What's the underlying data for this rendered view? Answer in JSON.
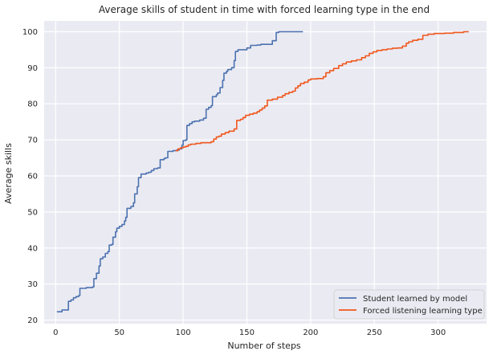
{
  "chart_data": {
    "type": "line",
    "title": "Average skills of student in time with forced learning type in the end",
    "xlabel": "Number of steps",
    "ylabel": "Average skills",
    "xlim": [
      -9,
      338
    ],
    "ylim": [
      19,
      103
    ],
    "x_ticks": [
      0,
      50,
      100,
      150,
      200,
      250,
      300
    ],
    "y_ticks": [
      20,
      30,
      40,
      50,
      60,
      70,
      80,
      90,
      100
    ],
    "grid": true,
    "legend_position": "bottom-right",
    "background": "#eaeaf2",
    "series": [
      {
        "name": "Student learned by model",
        "color": "#4c72b0",
        "step": true,
        "points": [
          [
            1,
            22.3
          ],
          [
            4,
            22.3
          ],
          [
            5,
            22.8
          ],
          [
            9,
            22.8
          ],
          [
            10,
            25.2
          ],
          [
            12,
            25.6
          ],
          [
            14,
            26.2
          ],
          [
            16,
            26.5
          ],
          [
            18,
            26.8
          ],
          [
            19,
            28.8
          ],
          [
            24,
            29.0
          ],
          [
            29,
            29.2
          ],
          [
            30,
            31.5
          ],
          [
            32,
            33.0
          ],
          [
            34,
            35.0
          ],
          [
            35,
            37.0
          ],
          [
            37,
            37.5
          ],
          [
            39,
            38.5
          ],
          [
            41,
            39.0
          ],
          [
            42,
            40.8
          ],
          [
            44,
            41.0
          ],
          [
            45,
            43.0
          ],
          [
            47,
            44.5
          ],
          [
            48,
            45.5
          ],
          [
            50,
            46.0
          ],
          [
            52,
            46.5
          ],
          [
            54,
            47.5
          ],
          [
            55,
            48.5
          ],
          [
            56,
            51.0
          ],
          [
            59,
            51.5
          ],
          [
            61,
            52.5
          ],
          [
            62,
            55.0
          ],
          [
            64,
            57.0
          ],
          [
            65,
            59.5
          ],
          [
            67,
            60.5
          ],
          [
            71,
            60.8
          ],
          [
            73,
            61.0
          ],
          [
            75,
            61.5
          ],
          [
            77,
            62.0
          ],
          [
            80,
            62.2
          ],
          [
            82,
            64.5
          ],
          [
            85,
            64.8
          ],
          [
            86,
            65.0
          ],
          [
            88,
            66.8
          ],
          [
            92,
            67.0
          ],
          [
            95,
            67.2
          ],
          [
            97,
            67.5
          ],
          [
            99,
            68.5
          ],
          [
            100,
            69.8
          ],
          [
            102,
            70.0
          ],
          [
            103,
            74.0
          ],
          [
            105,
            74.5
          ],
          [
            107,
            75.0
          ],
          [
            109,
            75.2
          ],
          [
            113,
            75.5
          ],
          [
            116,
            76.0
          ],
          [
            118,
            78.5
          ],
          [
            120,
            79.0
          ],
          [
            122,
            79.5
          ],
          [
            123,
            82.0
          ],
          [
            126,
            82.5
          ],
          [
            127,
            83.0
          ],
          [
            129,
            84.5
          ],
          [
            131,
            86.5
          ],
          [
            132,
            88.5
          ],
          [
            134,
            89.0
          ],
          [
            135,
            89.5
          ],
          [
            138,
            90.0
          ],
          [
            140,
            92.0
          ],
          [
            141,
            94.5
          ],
          [
            143,
            95.0
          ],
          [
            150,
            95.5
          ],
          [
            153,
            96.2
          ],
          [
            158,
            96.3
          ],
          [
            161,
            96.5
          ],
          [
            170,
            97.5
          ],
          [
            173,
            99.8
          ],
          [
            175,
            100.0
          ],
          [
            194,
            100.0
          ]
        ]
      },
      {
        "name": "Forced listening learning type",
        "color": "#f0571d",
        "step": true,
        "points": [
          [
            94,
            67.0
          ],
          [
            96,
            67.5
          ],
          [
            98,
            67.8
          ],
          [
            100,
            68.0
          ],
          [
            102,
            68.2
          ],
          [
            104,
            68.6
          ],
          [
            106,
            68.8
          ],
          [
            110,
            69.0
          ],
          [
            114,
            69.2
          ],
          [
            122,
            69.5
          ],
          [
            124,
            70.2
          ],
          [
            126,
            70.8
          ],
          [
            128,
            71.0
          ],
          [
            130,
            71.6
          ],
          [
            133,
            72.0
          ],
          [
            136,
            72.4
          ],
          [
            140,
            73.0
          ],
          [
            142,
            75.4
          ],
          [
            145,
            75.7
          ],
          [
            147,
            76.2
          ],
          [
            149,
            76.8
          ],
          [
            152,
            77.1
          ],
          [
            155,
            77.4
          ],
          [
            158,
            77.8
          ],
          [
            160,
            78.3
          ],
          [
            162,
            78.8
          ],
          [
            164,
            79.4
          ],
          [
            166,
            81.0
          ],
          [
            170,
            81.3
          ],
          [
            174,
            81.8
          ],
          [
            178,
            82.3
          ],
          [
            180,
            82.8
          ],
          [
            183,
            83.2
          ],
          [
            186,
            83.5
          ],
          [
            188,
            84.4
          ],
          [
            190,
            85.0
          ],
          [
            192,
            85.6
          ],
          [
            195,
            86.0
          ],
          [
            198,
            86.6
          ],
          [
            200,
            86.9
          ],
          [
            205,
            87.0
          ],
          [
            210,
            87.5
          ],
          [
            212,
            88.6
          ],
          [
            215,
            89.2
          ],
          [
            218,
            89.8
          ],
          [
            222,
            90.6
          ],
          [
            225,
            91.1
          ],
          [
            228,
            91.6
          ],
          [
            232,
            91.9
          ],
          [
            236,
            92.2
          ],
          [
            240,
            92.8
          ],
          [
            243,
            93.3
          ],
          [
            246,
            94.0
          ],
          [
            249,
            94.4
          ],
          [
            252,
            94.8
          ],
          [
            256,
            95.0
          ],
          [
            260,
            95.2
          ],
          [
            264,
            95.4
          ],
          [
            268,
            95.5
          ],
          [
            272,
            96.0
          ],
          [
            275,
            96.8
          ],
          [
            277,
            97.2
          ],
          [
            280,
            97.6
          ],
          [
            284,
            97.9
          ],
          [
            288,
            99.0
          ],
          [
            292,
            99.3
          ],
          [
            297,
            99.5
          ],
          [
            305,
            99.6
          ],
          [
            312,
            99.8
          ],
          [
            320,
            100.0
          ],
          [
            324,
            100.0
          ]
        ]
      }
    ]
  }
}
